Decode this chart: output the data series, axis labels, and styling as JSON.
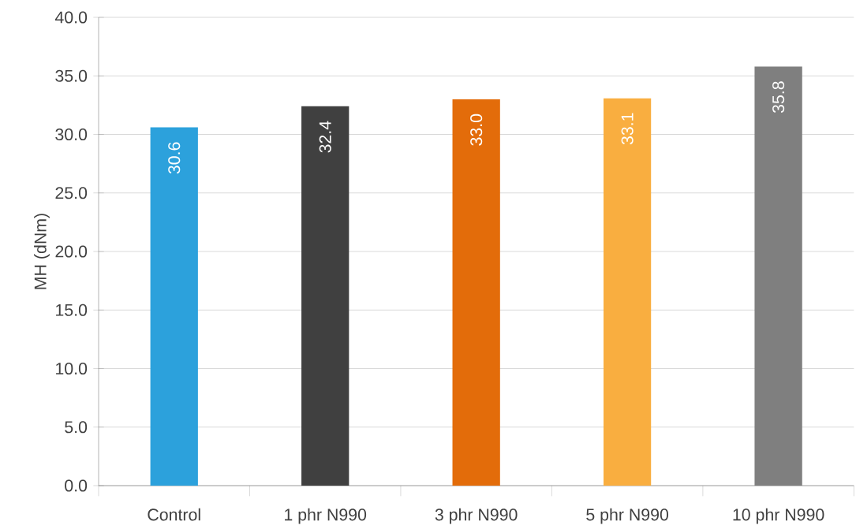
{
  "chart_data": {
    "type": "bar",
    "ylabel": "MH (dNm)",
    "categories": [
      "Control",
      "1 phr N990",
      "3 phr N990",
      "5 phr N990",
      "10 phr N990"
    ],
    "values": [
      30.6,
      32.4,
      33.0,
      33.1,
      35.8
    ],
    "colors": [
      "#2ca1dc",
      "#404040",
      "#e36c0a",
      "#f9ae40",
      "#7f7f7f"
    ],
    "ylim": [
      0,
      40
    ],
    "yticks": [
      {
        "value": 0,
        "label": "0.0"
      },
      {
        "value": 5,
        "label": "5.0"
      },
      {
        "value": 10,
        "label": "10.0"
      },
      {
        "value": 15,
        "label": "15.0"
      },
      {
        "value": 20,
        "label": "20.0"
      },
      {
        "value": 25,
        "label": "25.0"
      },
      {
        "value": 30,
        "label": "30.0"
      },
      {
        "value": 35,
        "label": "35.0"
      },
      {
        "value": 40,
        "label": "40.0"
      }
    ],
    "value_labels": [
      "30.6",
      "32.4",
      "33.0",
      "33.1",
      "35.8"
    ],
    "grid": "y"
  }
}
